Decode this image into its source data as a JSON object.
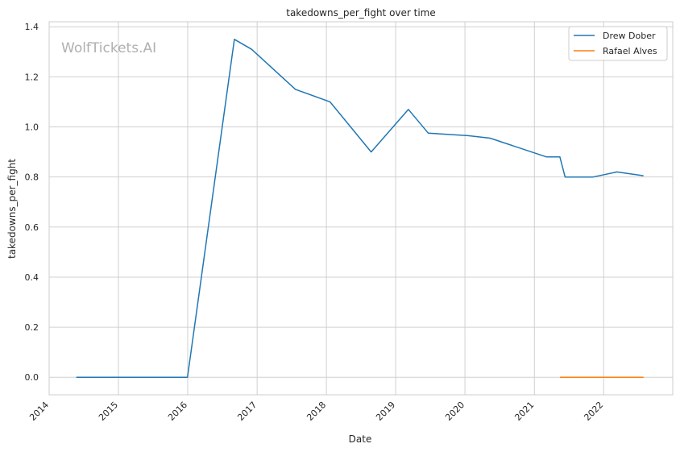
{
  "chart_data": {
    "type": "line",
    "title": "takedowns_per_fight over time",
    "xlabel": "Date",
    "ylabel": "takedowns_per_fight",
    "watermark": "WolfTickets.AI",
    "xlim": [
      "2014-01-01",
      "2022-12-31"
    ],
    "ylim": [
      -0.07,
      1.42
    ],
    "x_ticks": [
      "2014",
      "2015",
      "2016",
      "2017",
      "2018",
      "2019",
      "2020",
      "2021",
      "2022"
    ],
    "y_ticks": [
      "0.0",
      "0.2",
      "0.4",
      "0.6",
      "0.8",
      "1.0",
      "1.2",
      "1.4"
    ],
    "grid": true,
    "legend_position": "top-right",
    "series": [
      {
        "name": "Drew Dober",
        "color": "#1f77b4",
        "points": [
          [
            "2014-05-24",
            0.0
          ],
          [
            "2015-12-31",
            0.0
          ],
          [
            "2016-09-03",
            1.35
          ],
          [
            "2016-12-03",
            1.31
          ],
          [
            "2017-07-22",
            1.15
          ],
          [
            "2018-01-20",
            1.1
          ],
          [
            "2018-08-25",
            0.9
          ],
          [
            "2019-03-09",
            1.07
          ],
          [
            "2019-06-22",
            0.975
          ],
          [
            "2020-01-18",
            0.965
          ],
          [
            "2020-05-13",
            0.955
          ],
          [
            "2021-03-06",
            0.88
          ],
          [
            "2021-05-15",
            0.88
          ],
          [
            "2021-06-12",
            0.8
          ],
          [
            "2021-11-06",
            0.8
          ],
          [
            "2022-03-12",
            0.82
          ],
          [
            "2022-07-30",
            0.805
          ]
        ]
      },
      {
        "name": "Rafael Alves",
        "color": "#ff7f0e",
        "points": [
          [
            "2021-05-15",
            0.0
          ],
          [
            "2021-11-06",
            0.0
          ],
          [
            "2022-07-30",
            0.0
          ]
        ]
      }
    ]
  }
}
